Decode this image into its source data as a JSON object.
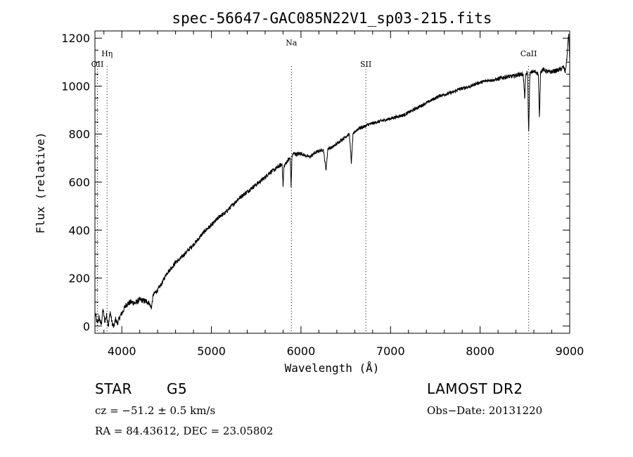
{
  "chart_data": {
    "type": "line",
    "title": "spec-56647-GAC085N22V1_sp03-215.fits",
    "xlabel": "Wavelength (Å)",
    "ylabel": "Flux (relative)",
    "xlim": [
      3700,
      9000
    ],
    "ylim": [
      -30,
      1230
    ],
    "x_ticks": [
      {
        "v": 4000,
        "label": "4000"
      },
      {
        "v": 5000,
        "label": "5000"
      },
      {
        "v": 6000,
        "label": "6000"
      },
      {
        "v": 7000,
        "label": "7000"
      },
      {
        "v": 8000,
        "label": "8000"
      },
      {
        "v": 9000,
        "label": "9000"
      }
    ],
    "y_ticks": [
      {
        "v": 0,
        "label": "0"
      },
      {
        "v": 200,
        "label": "200"
      },
      {
        "v": 400,
        "label": "400"
      },
      {
        "v": 600,
        "label": "600"
      },
      {
        "v": 800,
        "label": "800"
      },
      {
        "v": 1000,
        "label": "1000"
      },
      {
        "v": 1200,
        "label": "1200"
      }
    ],
    "line_markers": [
      {
        "name": "OII",
        "label": "OII",
        "wavelength": 3727,
        "label_flux": 1080
      },
      {
        "name": "Heta",
        "label": "Hη",
        "wavelength": 3835,
        "label_flux": 1125
      },
      {
        "name": "Na",
        "label": "Na",
        "wavelength": 5893,
        "label_flux": 1170
      },
      {
        "name": "SII",
        "label": "SII",
        "wavelength": 6724,
        "label_flux": 1080
      },
      {
        "name": "CaII",
        "label": "CaII",
        "wavelength": 8542,
        "label_flux": 1125
      }
    ],
    "series": [
      {
        "name": "flux",
        "x": [
          3705,
          3725,
          3745,
          3770,
          3790,
          3810,
          3830,
          3850,
          3870,
          3890,
          3910,
          3930,
          3950,
          3980,
          4010,
          4050,
          4100,
          4150,
          4200,
          4250,
          4300,
          4330,
          4350,
          4400,
          4450,
          4500,
          4550,
          4600,
          4650,
          4700,
          4750,
          4800,
          4850,
          4900,
          4950,
          5000,
          5050,
          5100,
          5150,
          5200,
          5250,
          5300,
          5350,
          5400,
          5450,
          5500,
          5550,
          5600,
          5650,
          5700,
          5750,
          5790,
          5800,
          5810,
          5850,
          5880,
          5890,
          5900,
          5920,
          5950,
          6000,
          6050,
          6100,
          6150,
          6200,
          6250,
          6280,
          6300,
          6350,
          6400,
          6450,
          6500,
          6540,
          6563,
          6580,
          6600,
          6650,
          6700,
          6750,
          6800,
          6850,
          6900,
          6950,
          7000,
          7050,
          7100,
          7150,
          7200,
          7250,
          7300,
          7350,
          7400,
          7450,
          7500,
          7550,
          7600,
          7650,
          7700,
          7750,
          7800,
          7850,
          7900,
          7950,
          8000,
          8050,
          8100,
          8150,
          8200,
          8250,
          8300,
          8350,
          8400,
          8450,
          8480,
          8498,
          8510,
          8530,
          8542,
          8555,
          8580,
          8620,
          8650,
          8662,
          8675,
          8700,
          8750,
          8800,
          8850,
          8900,
          8930,
          8950,
          8970,
          8980,
          8990,
          9000
        ],
        "y": [
          50,
          10,
          35,
          5,
          70,
          20,
          45,
          0,
          60,
          15,
          -5,
          30,
          10,
          40,
          60,
          90,
          100,
          95,
          110,
          105,
          100,
          75,
          130,
          150,
          180,
          220,
          240,
          265,
          280,
          300,
          320,
          340,
          360,
          385,
          405,
          420,
          440,
          460,
          470,
          490,
          510,
          530,
          545,
          560,
          575,
          590,
          605,
          620,
          640,
          650,
          665,
          675,
          580,
          665,
          690,
          700,
          580,
          710,
          720,
          715,
          720,
          710,
          705,
          720,
          730,
          735,
          650,
          740,
          745,
          760,
          775,
          790,
          800,
          680,
          795,
          810,
          825,
          830,
          840,
          845,
          850,
          855,
          860,
          865,
          870,
          875,
          880,
          890,
          900,
          910,
          920,
          930,
          940,
          950,
          960,
          965,
          970,
          975,
          985,
          990,
          995,
          1000,
          1010,
          1015,
          1020,
          1025,
          1025,
          1030,
          1035,
          1040,
          1040,
          1045,
          1050,
          1050,
          950,
          1050,
          1055,
          800,
          1050,
          1060,
          1060,
          1050,
          860,
          1060,
          1070,
          1060,
          1060,
          1065,
          1070,
          1080,
          1060,
          1120,
          1180,
          1220,
          1100
        ]
      }
    ]
  },
  "info": {
    "class_label": "STAR",
    "subclass": "G5",
    "survey": "LAMOST DR2",
    "redshift": "cz = −51.2 ± 0.5 km/s",
    "obs_date": "Obs−Date: 20131220",
    "coords": "RA =  84.43612, DEC =  23.05802"
  }
}
